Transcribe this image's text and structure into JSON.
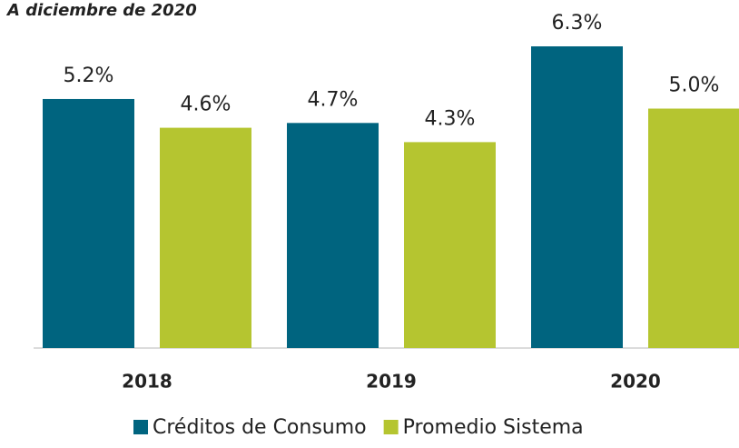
{
  "chart_data": {
    "type": "bar",
    "subtitle": "A diciembre de 2020",
    "categories": [
      "2018",
      "2019",
      "2020"
    ],
    "series": [
      {
        "name": "Créditos de Consumo",
        "color": "#00647f",
        "values": [
          5.2,
          4.7,
          6.3
        ],
        "value_labels": [
          "5.2%",
          "4.7%",
          "6.3%"
        ]
      },
      {
        "name": "Promedio Sistema",
        "color": "#b5c530",
        "values": [
          4.6,
          4.3,
          5.0
        ],
        "value_labels": [
          "4.6%",
          "4.3%",
          "5.0%"
        ]
      }
    ]
  }
}
